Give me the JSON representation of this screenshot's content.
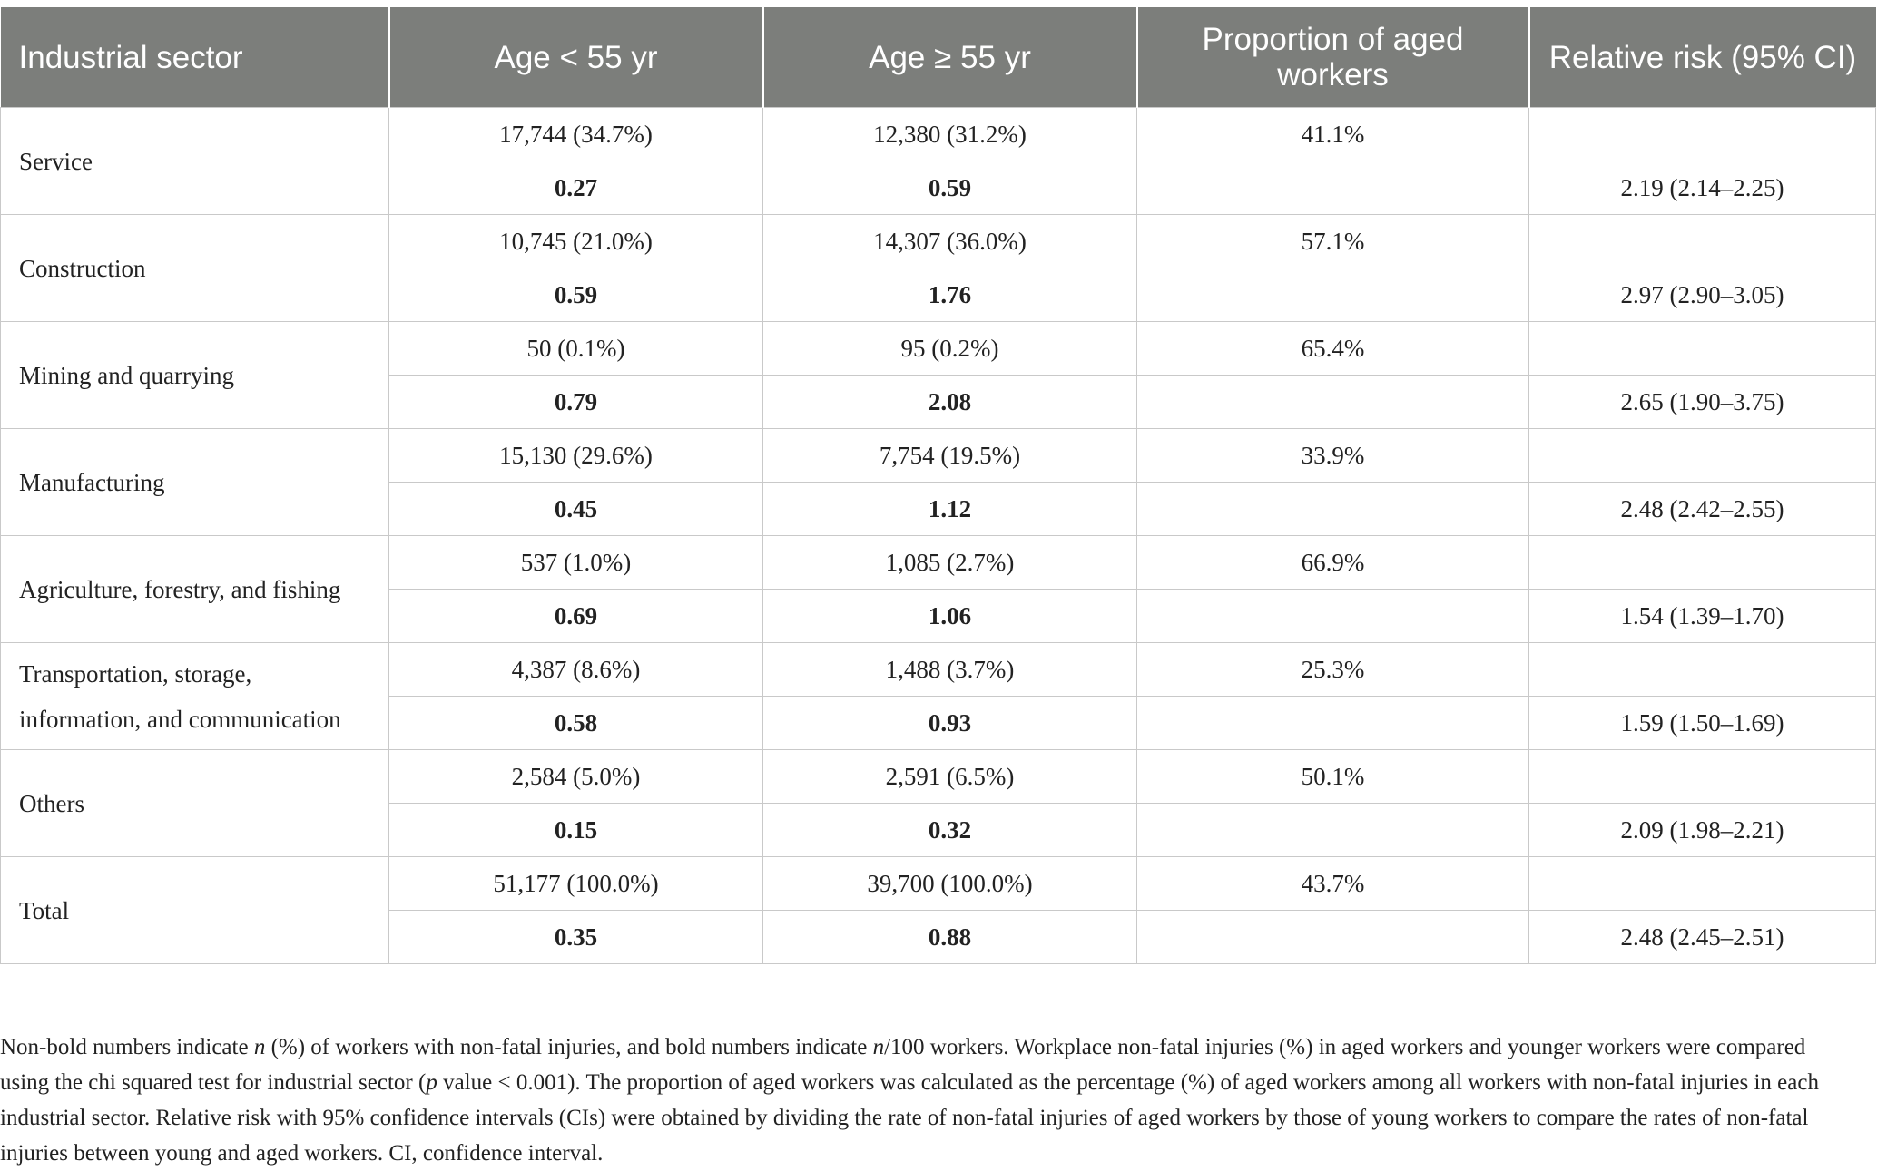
{
  "table": {
    "headers": [
      "Industrial sector",
      "Age < 55 yr",
      "Age ≥ 55 yr",
      "Proportion of aged workers",
      "Relative risk (95% CI)"
    ],
    "rows": [
      {
        "sector": "Service",
        "young_n": "17,744 (34.7%)",
        "aged_n": "12,380 (31.2%)",
        "proportion": "41.1%",
        "young_rate": "0.27",
        "aged_rate": "0.59",
        "rr": "2.19 (2.14–2.25)"
      },
      {
        "sector": "Construction",
        "young_n": "10,745 (21.0%)",
        "aged_n": "14,307 (36.0%)",
        "proportion": "57.1%",
        "young_rate": "0.59",
        "aged_rate": "1.76",
        "rr": "2.97 (2.90–3.05)"
      },
      {
        "sector": "Mining and quarrying",
        "young_n": "50 (0.1%)",
        "aged_n": "95 (0.2%)",
        "proportion": "65.4%",
        "young_rate": "0.79",
        "aged_rate": "2.08",
        "rr": "2.65 (1.90–3.75)"
      },
      {
        "sector": "Manufacturing",
        "young_n": "15,130 (29.6%)",
        "aged_n": "7,754 (19.5%)",
        "proportion": "33.9%",
        "young_rate": "0.45",
        "aged_rate": "1.12",
        "rr": "2.48 (2.42–2.55)"
      },
      {
        "sector": "Agriculture, forestry, and fishing",
        "young_n": "537 (1.0%)",
        "aged_n": "1,085 (2.7%)",
        "proportion": "66.9%",
        "young_rate": "0.69",
        "aged_rate": "1.06",
        "rr": "1.54 (1.39–1.70)"
      },
      {
        "sector": "Transportation, storage, information, and communication",
        "young_n": "4,387 (8.6%)",
        "aged_n": "1,488 (3.7%)",
        "proportion": "25.3%",
        "young_rate": "0.58",
        "aged_rate": "0.93",
        "rr": "1.59 (1.50–1.69)"
      },
      {
        "sector": "Others",
        "young_n": "2,584 (5.0%)",
        "aged_n": "2,591 (6.5%)",
        "proportion": "50.1%",
        "young_rate": "0.15",
        "aged_rate": "0.32",
        "rr": "2.09 (1.98–2.21)"
      },
      {
        "sector": "Total",
        "young_n": "51,177 (100.0%)",
        "aged_n": "39,700 (100.0%)",
        "proportion": "43.7%",
        "young_rate": "0.35",
        "aged_rate": "0.88",
        "rr": "2.48 (2.45–2.51)"
      }
    ]
  },
  "footnote": {
    "p1": "Non-bold numbers indicate ",
    "n1": "n",
    "p2": " (%) of workers with non-fatal injuries, and bold numbers indicate ",
    "n2": "n",
    "p3": "/100 workers. Workplace non-fatal injuries (%) in aged workers and younger workers were compared using the chi squared test for industrial sector (",
    "p_italic": "p",
    "p4": " value < 0.001). The proportion of aged workers was calculated as the percentage (%) of aged workers among all workers with non-fatal injuries in each industrial sector. Relative risk with 95% confidence intervals (CIs) were obtained by dividing the rate of non-fatal injuries of aged workers by those of young workers to compare the rates of non-fatal injuries between young and aged workers. CI, confidence interval."
  }
}
